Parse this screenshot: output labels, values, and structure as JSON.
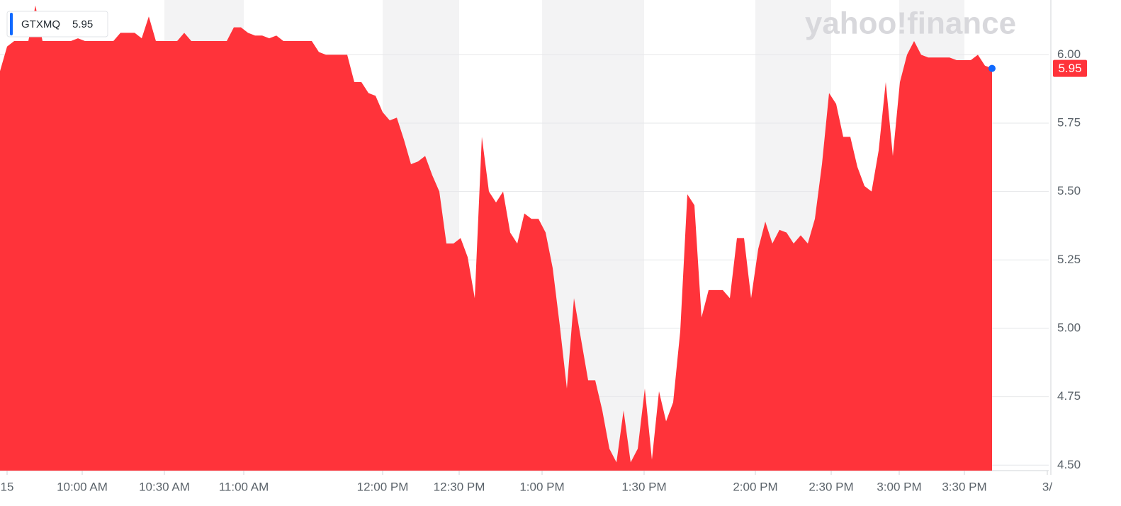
{
  "chart_data": {
    "type": "area",
    "watermark": "yahoo!finance",
    "series": [
      {
        "name": "GTXMQ",
        "color": "#ff333a",
        "values": [
          5.94,
          6.03,
          6.05,
          6.05,
          6.05,
          6.18,
          6.05,
          6.05,
          6.05,
          6.05,
          6.05,
          6.06,
          6.05,
          6.05,
          6.05,
          6.05,
          6.05,
          6.08,
          6.08,
          6.08,
          6.06,
          6.14,
          6.05,
          6.05,
          6.05,
          6.05,
          6.08,
          6.05,
          6.05,
          6.05,
          6.05,
          6.05,
          6.05,
          6.1,
          6.1,
          6.08,
          6.07,
          6.07,
          6.06,
          6.07,
          6.05,
          6.05,
          6.05,
          6.05,
          6.05,
          6.01,
          6.0,
          6.0,
          6.0,
          6.0,
          5.9,
          5.9,
          5.86,
          5.85,
          5.79,
          5.76,
          5.77,
          5.69,
          5.6,
          5.61,
          5.63,
          5.56,
          5.5,
          5.31,
          5.31,
          5.33,
          5.26,
          5.11,
          5.7,
          5.5,
          5.46,
          5.5,
          5.35,
          5.31,
          5.42,
          5.4,
          5.4,
          5.35,
          5.22,
          5.01,
          4.78,
          5.11,
          4.96,
          4.81,
          4.81,
          4.7,
          4.56,
          4.51,
          4.7,
          4.51,
          4.56,
          4.78,
          4.52,
          4.77,
          4.66,
          4.73,
          4.99,
          5.49,
          5.45,
          5.04,
          5.14,
          5.14,
          5.14,
          5.11,
          5.33,
          5.33,
          5.11,
          5.29,
          5.39,
          5.31,
          5.36,
          5.35,
          5.31,
          5.34,
          5.31,
          5.4,
          5.6,
          5.86,
          5.82,
          5.7,
          5.7,
          5.59,
          5.52,
          5.5,
          5.65,
          5.9,
          5.63,
          5.9,
          6.0,
          6.05,
          6.0,
          5.99,
          5.99,
          5.99,
          5.99,
          5.98,
          5.98,
          5.98,
          6.0,
          5.96,
          5.95
        ]
      }
    ],
    "xlim": [
      0,
      148
    ],
    "xticks": [
      {
        "value": 1,
        "label": "15"
      },
      {
        "value": 11.6,
        "label": "10:00 AM"
      },
      {
        "value": 23.2,
        "label": "10:30 AM"
      },
      {
        "value": 34.4,
        "label": "11:00 AM"
      },
      {
        "value": 54.0,
        "label": "12:00 PM"
      },
      {
        "value": 64.8,
        "label": "12:30 PM"
      },
      {
        "value": 76.5,
        "label": "1:00 PM"
      },
      {
        "value": 90.9,
        "label": "1:30 PM"
      },
      {
        "value": 106.6,
        "label": "2:00 PM"
      },
      {
        "value": 117.3,
        "label": "2:30 PM"
      },
      {
        "value": 126.9,
        "label": "3:00 PM"
      },
      {
        "value": 136.1,
        "label": "3:30 PM"
      },
      {
        "value": 147.8,
        "label": "3/"
      }
    ],
    "ylim": [
      4.48,
      6.2
    ],
    "yticks": [
      {
        "value": 4.5,
        "label": "4.50"
      },
      {
        "value": 4.75,
        "label": "4.75"
      },
      {
        "value": 5,
        "label": "5.00"
      },
      {
        "value": 5.25,
        "label": "5.25"
      },
      {
        "value": 5.5,
        "label": "5.50"
      },
      {
        "value": 5.75,
        "label": "5.75"
      },
      {
        "value": 6,
        "label": "6.00"
      }
    ],
    "grid": true
  }
}
